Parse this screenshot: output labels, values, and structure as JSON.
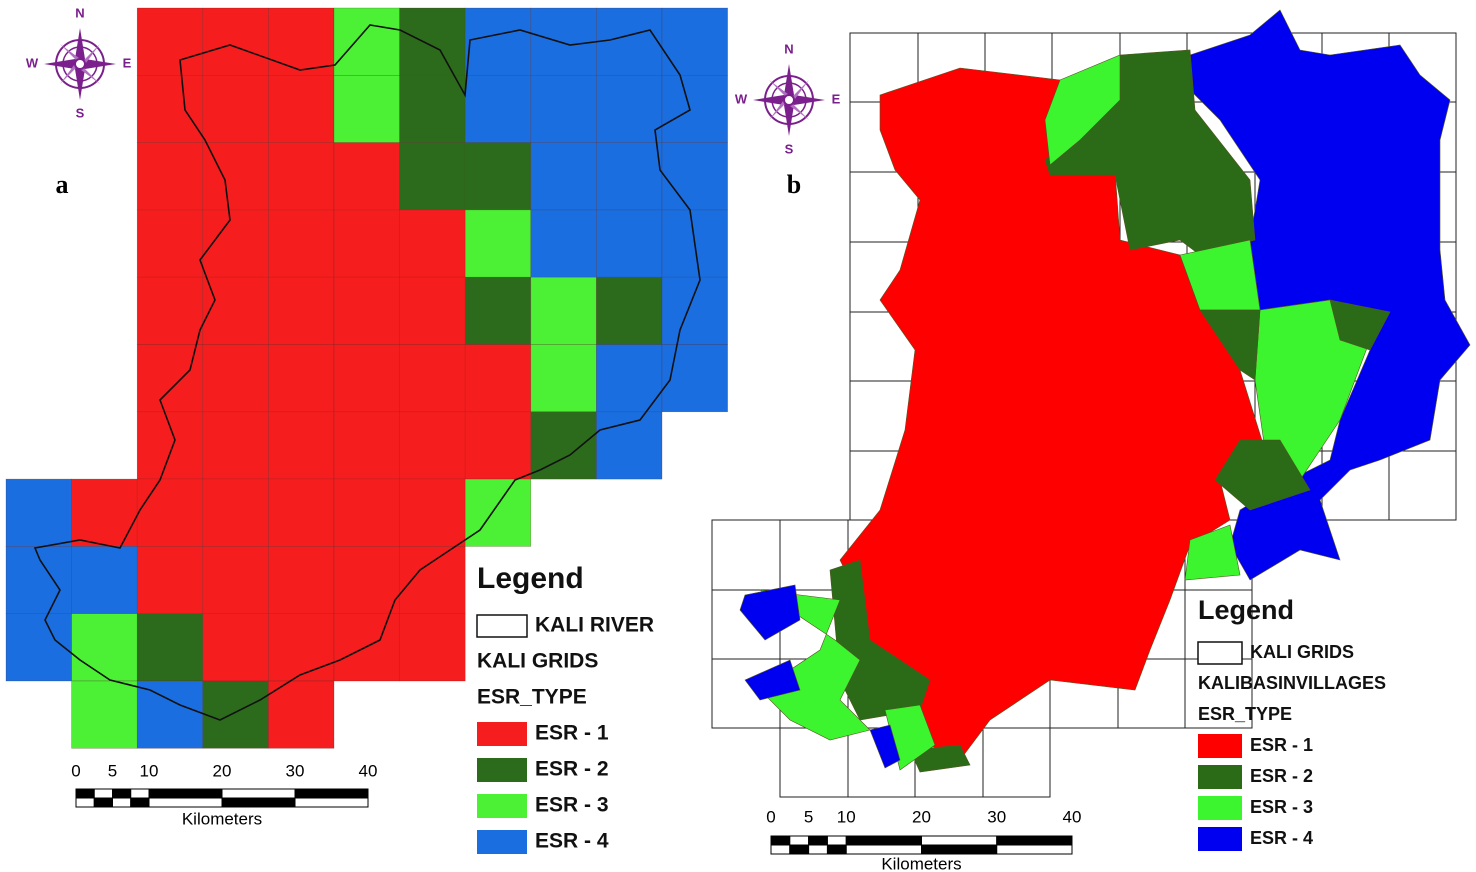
{
  "panels": [
    {
      "label": "a",
      "compass": {
        "n": "N",
        "s": "S",
        "w": "W",
        "e": "E"
      },
      "legend": {
        "title": "Legend",
        "boundary": "KALI RIVER",
        "grids": "KALI GRIDS",
        "field": "ESR_TYPE",
        "items": [
          {
            "name": "ESR - 1",
            "color": "#f51d1d"
          },
          {
            "name": "ESR - 2",
            "color": "#2d6b1c"
          },
          {
            "name": "ESR - 3",
            "color": "#4cf034"
          },
          {
            "name": "ESR - 4",
            "color": "#1a6ee0"
          }
        ]
      },
      "scale": {
        "labels": [
          "0",
          "5",
          "10",
          "20",
          "30",
          "40"
        ],
        "unit": "Kilometers"
      }
    },
    {
      "label": "b",
      "compass": {
        "n": "N",
        "s": "S",
        "w": "W",
        "e": "E"
      },
      "legend": {
        "title": "Legend",
        "grids": "KALI GRIDS",
        "villages": "KALIBASINVILLAGES",
        "field": "ESR_TYPE",
        "items": [
          {
            "name": "ESR - 1",
            "color": "#ff0000"
          },
          {
            "name": "ESR - 2",
            "color": "#2b6a16"
          },
          {
            "name": "ESR - 3",
            "color": "#3cf52e"
          },
          {
            "name": "ESR - 4",
            "color": "#0000f0"
          }
        ]
      },
      "scale": {
        "labels": [
          "0",
          "5",
          "10",
          "20",
          "30",
          "40"
        ],
        "unit": "Kilometers"
      }
    }
  ]
}
